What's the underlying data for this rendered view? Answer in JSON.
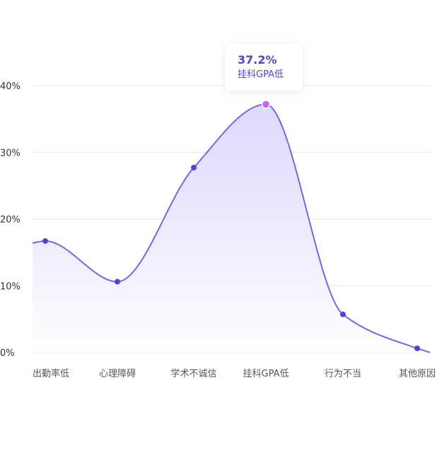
{
  "colors": {
    "line": "#7a63e6",
    "point": "#5b3fd0",
    "highlight_point": "#c867f0",
    "area_top": "#d9d3fa",
    "area_bottom": "#ffffff"
  },
  "chart_data": {
    "type": "area",
    "categories": [
      "出勤率低",
      "心理障碍",
      "学术不诚信",
      "挂科GPA低",
      "行为不当",
      "其他原因"
    ],
    "values": [
      16.7,
      10.6,
      27.7,
      37.2,
      5.7,
      0.6
    ],
    "y_ticks": [
      "0%",
      "10%",
      "20%",
      "30%",
      "40%"
    ],
    "ylim": [
      0,
      40
    ],
    "grid": true,
    "smooth": true,
    "highlight_index": 3
  },
  "tooltip": {
    "value": "37.2%",
    "label": "挂科GPA低"
  }
}
